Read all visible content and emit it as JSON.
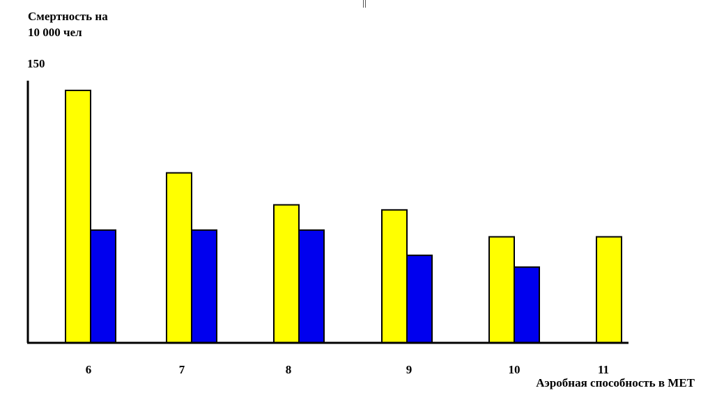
{
  "chart_data": {
    "type": "bar",
    "ylabel_lines": [
      "Смертность на",
      "10 000 чел"
    ],
    "ytick_label": "150",
    "xlabel": "Аэробная способность в МЕТ",
    "categories": [
      "6",
      "7",
      "8",
      "9",
      "10",
      "11"
    ],
    "ylim": [
      0,
      150
    ],
    "series": [
      {
        "color": "#ffff00",
        "values": [
          150,
          101,
          82,
          79,
          63,
          63
        ]
      },
      {
        "color": "#0000ee",
        "values": [
          67,
          67,
          67,
          52,
          45,
          null
        ]
      }
    ],
    "grid": false,
    "legend": "none"
  }
}
